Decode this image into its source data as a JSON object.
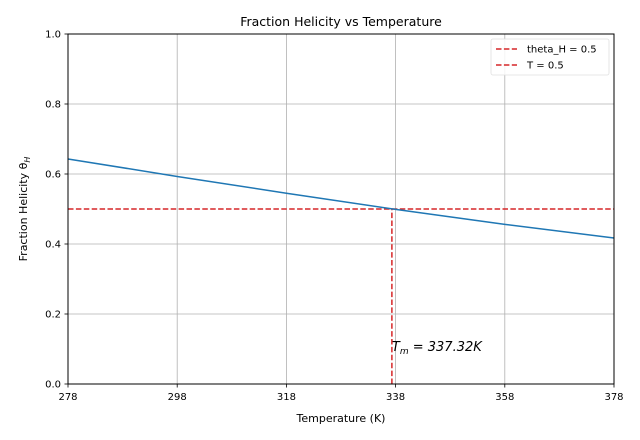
{
  "chart_data": {
    "type": "line",
    "title": "Fraction Helicity vs Temperature",
    "xlabel": "Temperature (K)",
    "ylabel_main": "Fraction Helicity θ",
    "ylabel_sub": "H",
    "xlim": [
      278,
      378
    ],
    "ylim": [
      0.0,
      1.0
    ],
    "xticks": [
      278,
      298,
      318,
      338,
      358,
      378
    ],
    "xtick_labels": [
      "278",
      "298",
      "318",
      "338",
      "358",
      "378"
    ],
    "yticks": [
      0.0,
      0.2,
      0.4,
      0.6,
      0.8,
      1.0
    ],
    "ytick_labels": [
      "0.0",
      "0.2",
      "0.4",
      "0.6",
      "0.8",
      "1.0"
    ],
    "grid": true,
    "legend_position": "top-right",
    "series": [
      {
        "name": "",
        "color": "#1f77b4",
        "style": "solid",
        "x": [
          278,
          298,
          318,
          338,
          358,
          378
        ],
        "y": [
          0.643,
          0.593,
          0.545,
          0.499,
          0.456,
          0.417
        ]
      }
    ],
    "reference_lines": [
      {
        "name": "theta_H = 0.5",
        "orientation": "horizontal",
        "value": 0.5,
        "color": "#d62728",
        "style": "dashed"
      },
      {
        "name": "T = 0.5",
        "orientation": "vertical",
        "value": 337.32,
        "color": "#d62728",
        "style": "dashed"
      }
    ],
    "annotation": {
      "text_main": "T",
      "text_sub": "m",
      "text_rest": " = 337.32K",
      "x": 337.32,
      "y": 0.1
    }
  }
}
